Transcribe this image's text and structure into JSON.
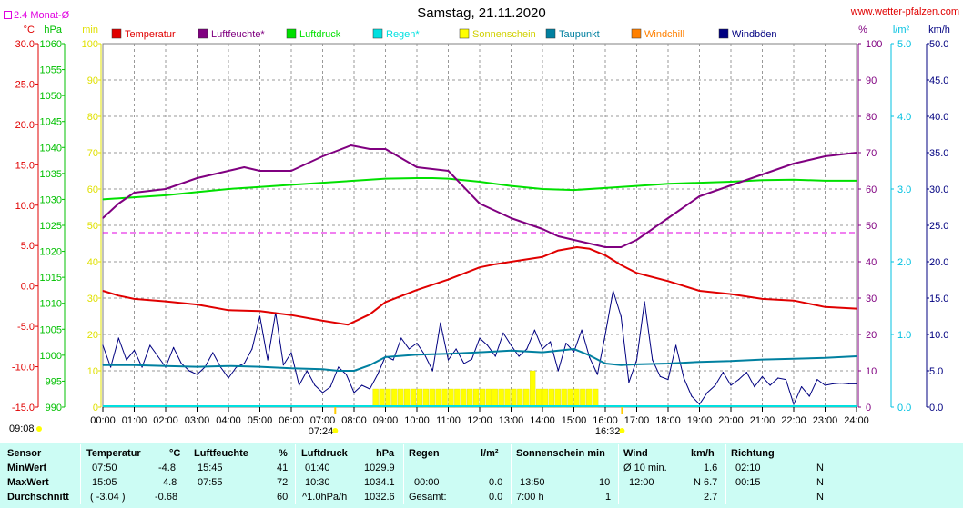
{
  "page": {
    "title": "Samstag, 21.11.2020",
    "site": "www.wetter-pfalzen.com",
    "rain_note": "2.4 Monat-Ø",
    "sunrise": "07:24",
    "sunset": "16:32",
    "corner_time": "09:08"
  },
  "colors": {
    "temperature": "#e00000",
    "humidity": "#800080",
    "pressure": "#00e000",
    "rain": "#00e0e0",
    "sunshine": "#ffff00",
    "dewpoint": "#0080a0",
    "windchill": "#ff8000",
    "windgust": "#000080",
    "magenta_ref": "#e000e0",
    "summary_bg": "#ccfcf4"
  },
  "chart_data": {
    "type": "line",
    "title": "Samstag, 21.11.2020",
    "legend": [
      {
        "name": "Temperatur",
        "color": "#e00000"
      },
      {
        "name": "Luftfeuchte*",
        "color": "#800080"
      },
      {
        "name": "Luftdruck",
        "color": "#00e000"
      },
      {
        "name": "Regen*",
        "color": "#00e0e0"
      },
      {
        "name": "Sonnenschein",
        "color": "#ffff00"
      },
      {
        "name": "Taupunkt",
        "color": "#0080a0"
      },
      {
        "name": "Windchill",
        "color": "#ff8000"
      },
      {
        "name": "Windböen",
        "color": "#000080"
      }
    ],
    "x_ticks": [
      "00:00",
      "01:00",
      "02:00",
      "03:00",
      "04:00",
      "05:00",
      "06:00",
      "07:00",
      "08:00",
      "09:00",
      "10:00",
      "11:00",
      "12:00",
      "13:00",
      "14:00",
      "15:00",
      "16:00",
      "17:00",
      "18:00",
      "19:00",
      "20:00",
      "21:00",
      "22:00",
      "23:00",
      "24:00"
    ],
    "axes": {
      "temperature": {
        "unit": "°C",
        "range": [
          -15,
          30
        ],
        "ticks": [
          "30.0",
          "25.0",
          "20.0",
          "15.0",
          "10.0",
          "5.0",
          "0.0",
          "-5.0",
          "-10.0",
          "-15.0"
        ]
      },
      "pressure": {
        "unit": "hPa",
        "range": [
          990,
          1060
        ],
        "ticks": [
          "1060",
          "1055",
          "1050",
          "1045",
          "1040",
          "1035",
          "1030",
          "1025",
          "1020",
          "1015",
          "1010",
          "1005",
          "1000",
          "995",
          "990"
        ]
      },
      "sunshine": {
        "unit": "min",
        "range": [
          0,
          100
        ],
        "ticks": [
          "100",
          "90",
          "80",
          "70",
          "60",
          "50",
          "40",
          "30",
          "20",
          "10",
          "0"
        ]
      },
      "humidity": {
        "unit": "%",
        "range": [
          0,
          100
        ],
        "ticks": [
          "100",
          "90",
          "80",
          "70",
          "60",
          "50",
          "40",
          "30",
          "20",
          "10",
          "0"
        ]
      },
      "rain": {
        "unit": "l/m²",
        "range": [
          0,
          5
        ],
        "ticks": [
          "5.0",
          "4.0",
          "3.0",
          "2.0",
          "1.0",
          "0.0"
        ]
      },
      "wind": {
        "unit": "km/h",
        "range": [
          0,
          50
        ],
        "ticks": [
          "50.0",
          "45.0",
          "40.0",
          "35.0",
          "30.0",
          "25.0",
          "20.0",
          "15.0",
          "10.0",
          "5.0",
          "0.0"
        ]
      }
    },
    "series": [
      {
        "name": "Temperatur",
        "axis": "temperature",
        "x": [
          0,
          0.5,
          1,
          2,
          3,
          4,
          5,
          6,
          7,
          7.8,
          8.5,
          9,
          10,
          11,
          12,
          12.5,
          13,
          14,
          14.5,
          15.1,
          15.5,
          16,
          16.5,
          17,
          18,
          19,
          20,
          21,
          22,
          23,
          24
        ],
        "values": [
          -0.6,
          -1.2,
          -1.6,
          -1.9,
          -2.3,
          -3.0,
          -3.1,
          -3.6,
          -4.3,
          -4.8,
          -3.5,
          -2.0,
          -0.5,
          0.8,
          2.3,
          2.7,
          3.0,
          3.6,
          4.4,
          4.8,
          4.6,
          3.8,
          2.6,
          1.6,
          0.6,
          -0.6,
          -1.0,
          -1.6,
          -1.8,
          -2.6,
          -2.8
        ]
      },
      {
        "name": "Luftfeuchte*",
        "axis": "humidity",
        "x": [
          0,
          0.5,
          1,
          2,
          3,
          4,
          4.5,
          5,
          6,
          7,
          7.9,
          8.5,
          9,
          10,
          11,
          12,
          13,
          14,
          14.5,
          15,
          15.5,
          16,
          16.5,
          17,
          18,
          19,
          20,
          21,
          22,
          23,
          24
        ],
        "values": [
          52,
          56,
          59,
          60,
          63,
          65,
          66,
          65,
          65,
          69,
          72,
          71,
          71,
          66,
          65,
          56,
          52,
          49,
          47,
          46,
          45,
          44,
          44,
          46,
          52,
          58,
          61,
          64,
          67,
          69,
          70
        ]
      },
      {
        "name": "Luftdruck",
        "axis": "pressure",
        "x": [
          0,
          1,
          2,
          3,
          4,
          5,
          6,
          7,
          8,
          9,
          10,
          10.5,
          11,
          12,
          13,
          14,
          15,
          16,
          17,
          18,
          19,
          20,
          21,
          22,
          23,
          24
        ],
        "values": [
          1030.0,
          1030.4,
          1030.8,
          1031.4,
          1032.0,
          1032.4,
          1032.8,
          1033.2,
          1033.6,
          1034.0,
          1034.1,
          1034.1,
          1034.0,
          1033.4,
          1032.6,
          1032.0,
          1031.8,
          1032.2,
          1032.6,
          1033.0,
          1033.2,
          1033.4,
          1033.7,
          1033.8,
          1033.6,
          1033.6
        ]
      },
      {
        "name": "Taupunkt",
        "axis": "temperature",
        "x": [
          0,
          1,
          2,
          3,
          4,
          5,
          6,
          7,
          7.5,
          8,
          8.5,
          9,
          10,
          11,
          12,
          13,
          14,
          15,
          15.5,
          16,
          16.5,
          17,
          18,
          19,
          20,
          21,
          22,
          23,
          24
        ],
        "values": [
          -9.8,
          -9.8,
          -9.9,
          -10.0,
          -9.9,
          -10.0,
          -10.2,
          -10.3,
          -10.5,
          -10.5,
          -9.8,
          -8.8,
          -8.5,
          -8.4,
          -8.2,
          -8.0,
          -8.2,
          -7.8,
          -8.6,
          -9.6,
          -9.8,
          -9.7,
          -9.6,
          -9.4,
          -9.3,
          -9.1,
          -9.0,
          -8.9,
          -8.7
        ]
      },
      {
        "name": "Windböen",
        "axis": "wind",
        "x": [
          0,
          0.25,
          0.5,
          0.75,
          1,
          1.25,
          1.5,
          1.75,
          2,
          2.25,
          2.5,
          2.75,
          3,
          3.25,
          3.5,
          3.75,
          4,
          4.25,
          4.5,
          4.75,
          5,
          5.25,
          5.5,
          5.75,
          6,
          6.25,
          6.5,
          6.75,
          7,
          7.25,
          7.5,
          7.75,
          8,
          8.25,
          8.5,
          8.75,
          9,
          9.25,
          9.5,
          9.75,
          10,
          10.25,
          10.5,
          10.75,
          11,
          11.25,
          11.5,
          11.75,
          12,
          12.25,
          12.5,
          12.75,
          13,
          13.25,
          13.5,
          13.75,
          14,
          14.25,
          14.5,
          14.75,
          15,
          15.25,
          15.5,
          15.75,
          16,
          16.25,
          16.5,
          16.75,
          17,
          17.25,
          17.5,
          17.75,
          18,
          18.25,
          18.5,
          18.75,
          19,
          19.25,
          19.5,
          19.75,
          20,
          20.25,
          20.5,
          20.75,
          21,
          21.25,
          21.5,
          21.75,
          22,
          22.25,
          22.5,
          22.75,
          23,
          23.25,
          23.5,
          23.75,
          24
        ],
        "values": [
          8.5,
          5.5,
          9.5,
          6.5,
          7.8,
          5.5,
          8.5,
          7,
          5.5,
          8.2,
          6,
          5,
          4.5,
          5.5,
          7.5,
          5.5,
          4,
          5.5,
          6,
          8,
          12.5,
          6.5,
          13,
          5.8,
          7.5,
          3,
          5,
          3,
          2,
          2.8,
          5.5,
          4.5,
          2,
          3,
          2.5,
          4.5,
          7,
          6.5,
          9.5,
          8,
          8.8,
          7.2,
          5,
          11.6,
          6.5,
          8,
          6,
          6.6,
          9.5,
          8.5,
          7,
          10.2,
          8.5,
          7,
          8,
          10.6,
          8,
          9,
          5,
          8.8,
          7.6,
          10.6,
          6.8,
          4.5,
          10,
          16,
          12.5,
          3.4,
          6.5,
          14.5,
          6.5,
          4.2,
          3.8,
          8.5,
          4,
          1.5,
          0.4,
          2,
          3,
          4.8,
          3,
          3.8,
          4.8,
          2.8,
          4.2,
          3,
          4,
          3.8,
          0.4,
          2.8,
          1.5,
          3.8,
          3,
          3.2,
          3.3,
          3.2,
          3.2
        ]
      },
      {
        "name": "Sonnenschein",
        "axis": "sunshine",
        "x": [
          8.6,
          8.8,
          9,
          9.2,
          9.4,
          9.6,
          9.8,
          10,
          10.2,
          10.4,
          10.6,
          10.8,
          11,
          11.2,
          11.4,
          11.6,
          11.8,
          12,
          12.2,
          12.4,
          12.6,
          12.8,
          13,
          13.2,
          13.4,
          13.6,
          13.8,
          14,
          14.2,
          14.4,
          14.6,
          14.8,
          15,
          15.2,
          15.4,
          15.6
        ],
        "values": [
          5,
          5,
          5,
          5,
          5,
          5,
          5,
          5,
          5,
          5,
          5,
          5,
          5,
          5,
          5,
          5,
          5,
          5,
          5,
          5,
          5,
          5,
          5,
          5,
          5,
          10,
          5,
          5,
          5,
          5,
          5,
          5,
          5,
          5,
          5,
          5
        ]
      },
      {
        "name": "Regen*",
        "axis": "rain",
        "x": [
          0,
          24
        ],
        "values": [
          0,
          0
        ]
      }
    ],
    "reference_line": {
      "axis": "rain",
      "value": 2.4,
      "label": "2.4 Monat-Ø"
    },
    "grid": true,
    "legend_position": "top"
  },
  "summary": {
    "headers": {
      "sensor": "Sensor",
      "temp": "Temperatur",
      "temp_unit": "°C",
      "hum": "Luftfeuchte",
      "hum_unit": "%",
      "press": "Luftdruck",
      "press_unit": "hPa",
      "rain": "Regen",
      "rain_unit": "l/m²",
      "sun": "Sonnenschein min",
      "wind": "Wind",
      "wind_unit": "km/h",
      "dir": "Richtung"
    },
    "rows": [
      {
        "label": "MinWert",
        "t_time": "07:50",
        "t_val": "-4.8",
        "h_time": "15:45",
        "h_val": "41",
        "p_time": "01:40",
        "p_val": "1029.9",
        "r_time": "",
        "r_val": "",
        "s_time": "",
        "s_val": "",
        "w_label": "Ø 10 min.",
        "w_val": "1.6",
        "d_time": "02:10",
        "d_val": "N"
      },
      {
        "label": "MaxWert",
        "t_time": "15:05",
        "t_val": "4.8",
        "h_time": "07:55",
        "h_val": "72",
        "p_time": "10:30",
        "p_val": "1034.1",
        "r_time": "00:00",
        "r_val": "0.0",
        "s_time": "13:50",
        "s_val": "10",
        "w_label": "12:00",
        "w_val": "N 6.7",
        "d_time": "00:15",
        "d_val": "N"
      },
      {
        "label": "Durchschnitt",
        "t_time": "( -3.04 )",
        "t_val": "-0.68",
        "h_time": "",
        "h_val": "60",
        "p_time": "^1.0hPa/h",
        "p_val": "1032.6",
        "r_time": "Gesamt:",
        "r_val": "0.0",
        "s_time": "7:00 h",
        "s_val": "1",
        "w_label": "",
        "w_val": "2.7",
        "d_time": "",
        "d_val": "N"
      }
    ]
  }
}
